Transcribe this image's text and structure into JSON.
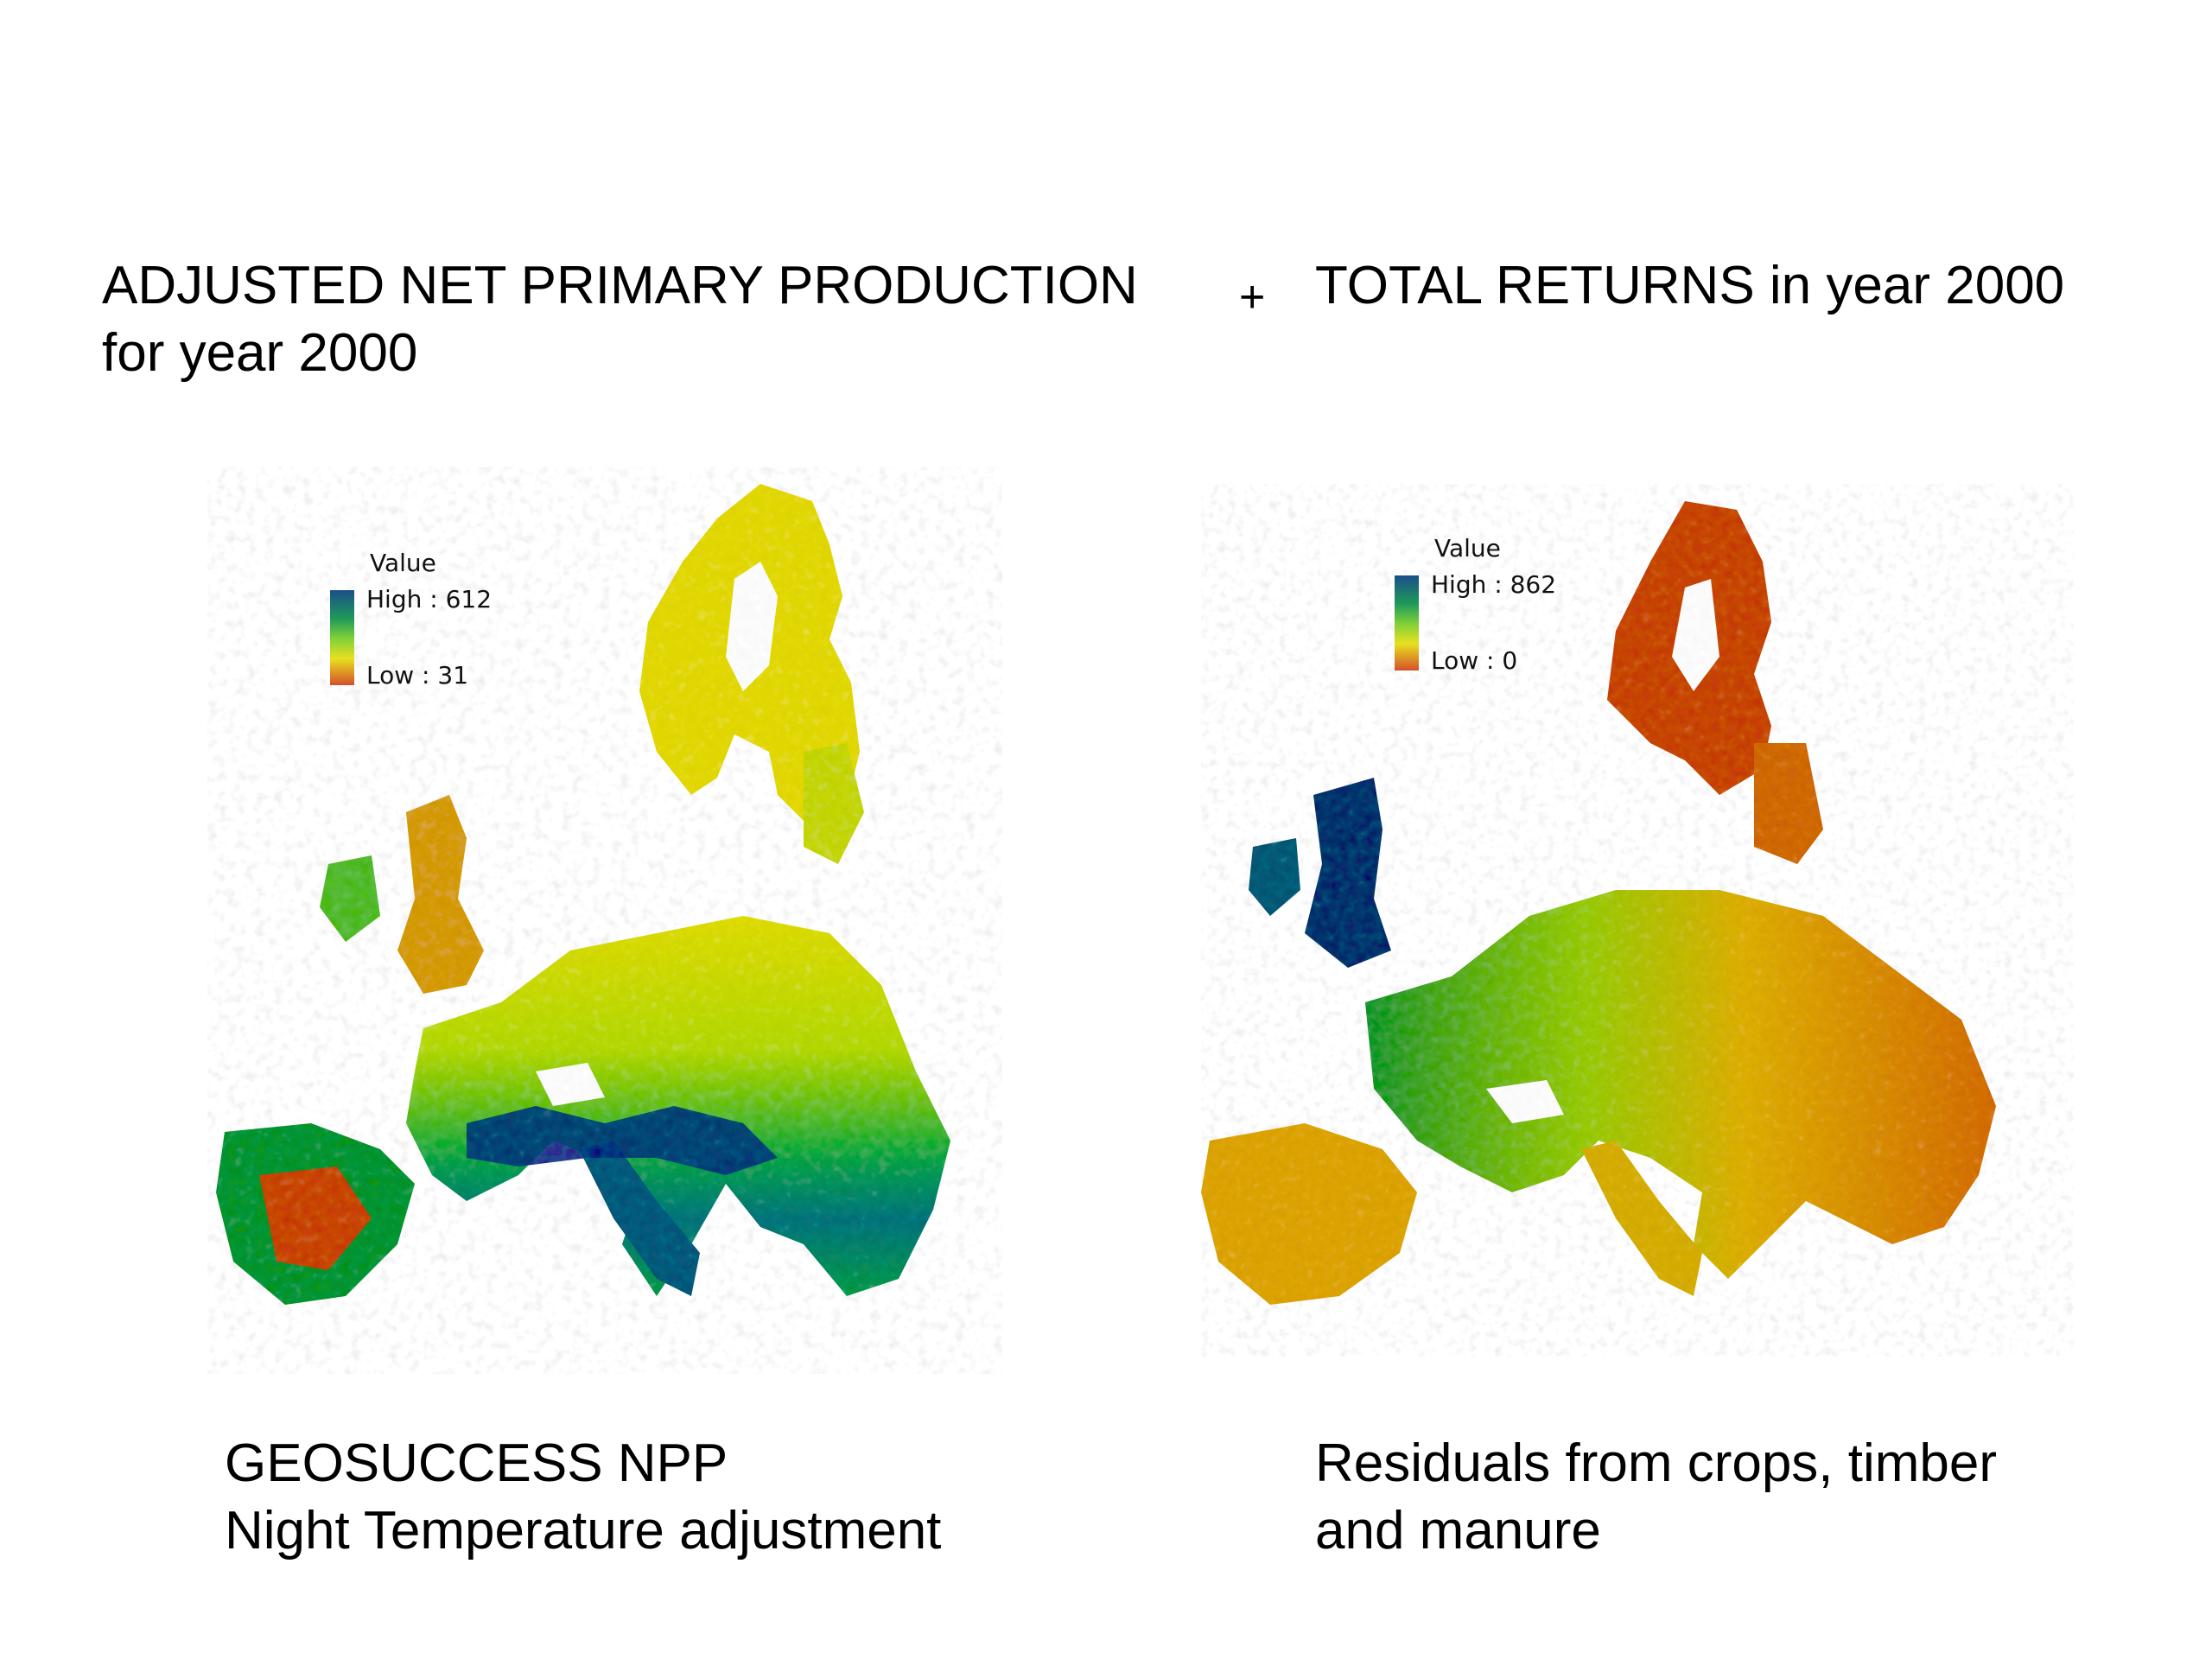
{
  "titles": {
    "left": "ADJUSTED NET PRIMARY PRODUCTION\nfor year 2000",
    "plus": "+",
    "right": "TOTAL RETURNS in year 2000"
  },
  "captions": {
    "left": "GEOSUCCESS NPP\nNight Temperature adjustment",
    "right": "Residuals from crops, timber\nand manure"
  },
  "legends": {
    "left": {
      "title": "Value",
      "high": "High : 612",
      "low": "Low : 31"
    },
    "right": {
      "title": "Value",
      "high": "High : 862",
      "low": "Low : 0"
    }
  },
  "colors": {
    "high": "#1a4f8a",
    "mid_high": "#1f9a5a",
    "mid": "#7ccf3a",
    "mid_low": "#e8e020",
    "low": "#d4502a"
  }
}
